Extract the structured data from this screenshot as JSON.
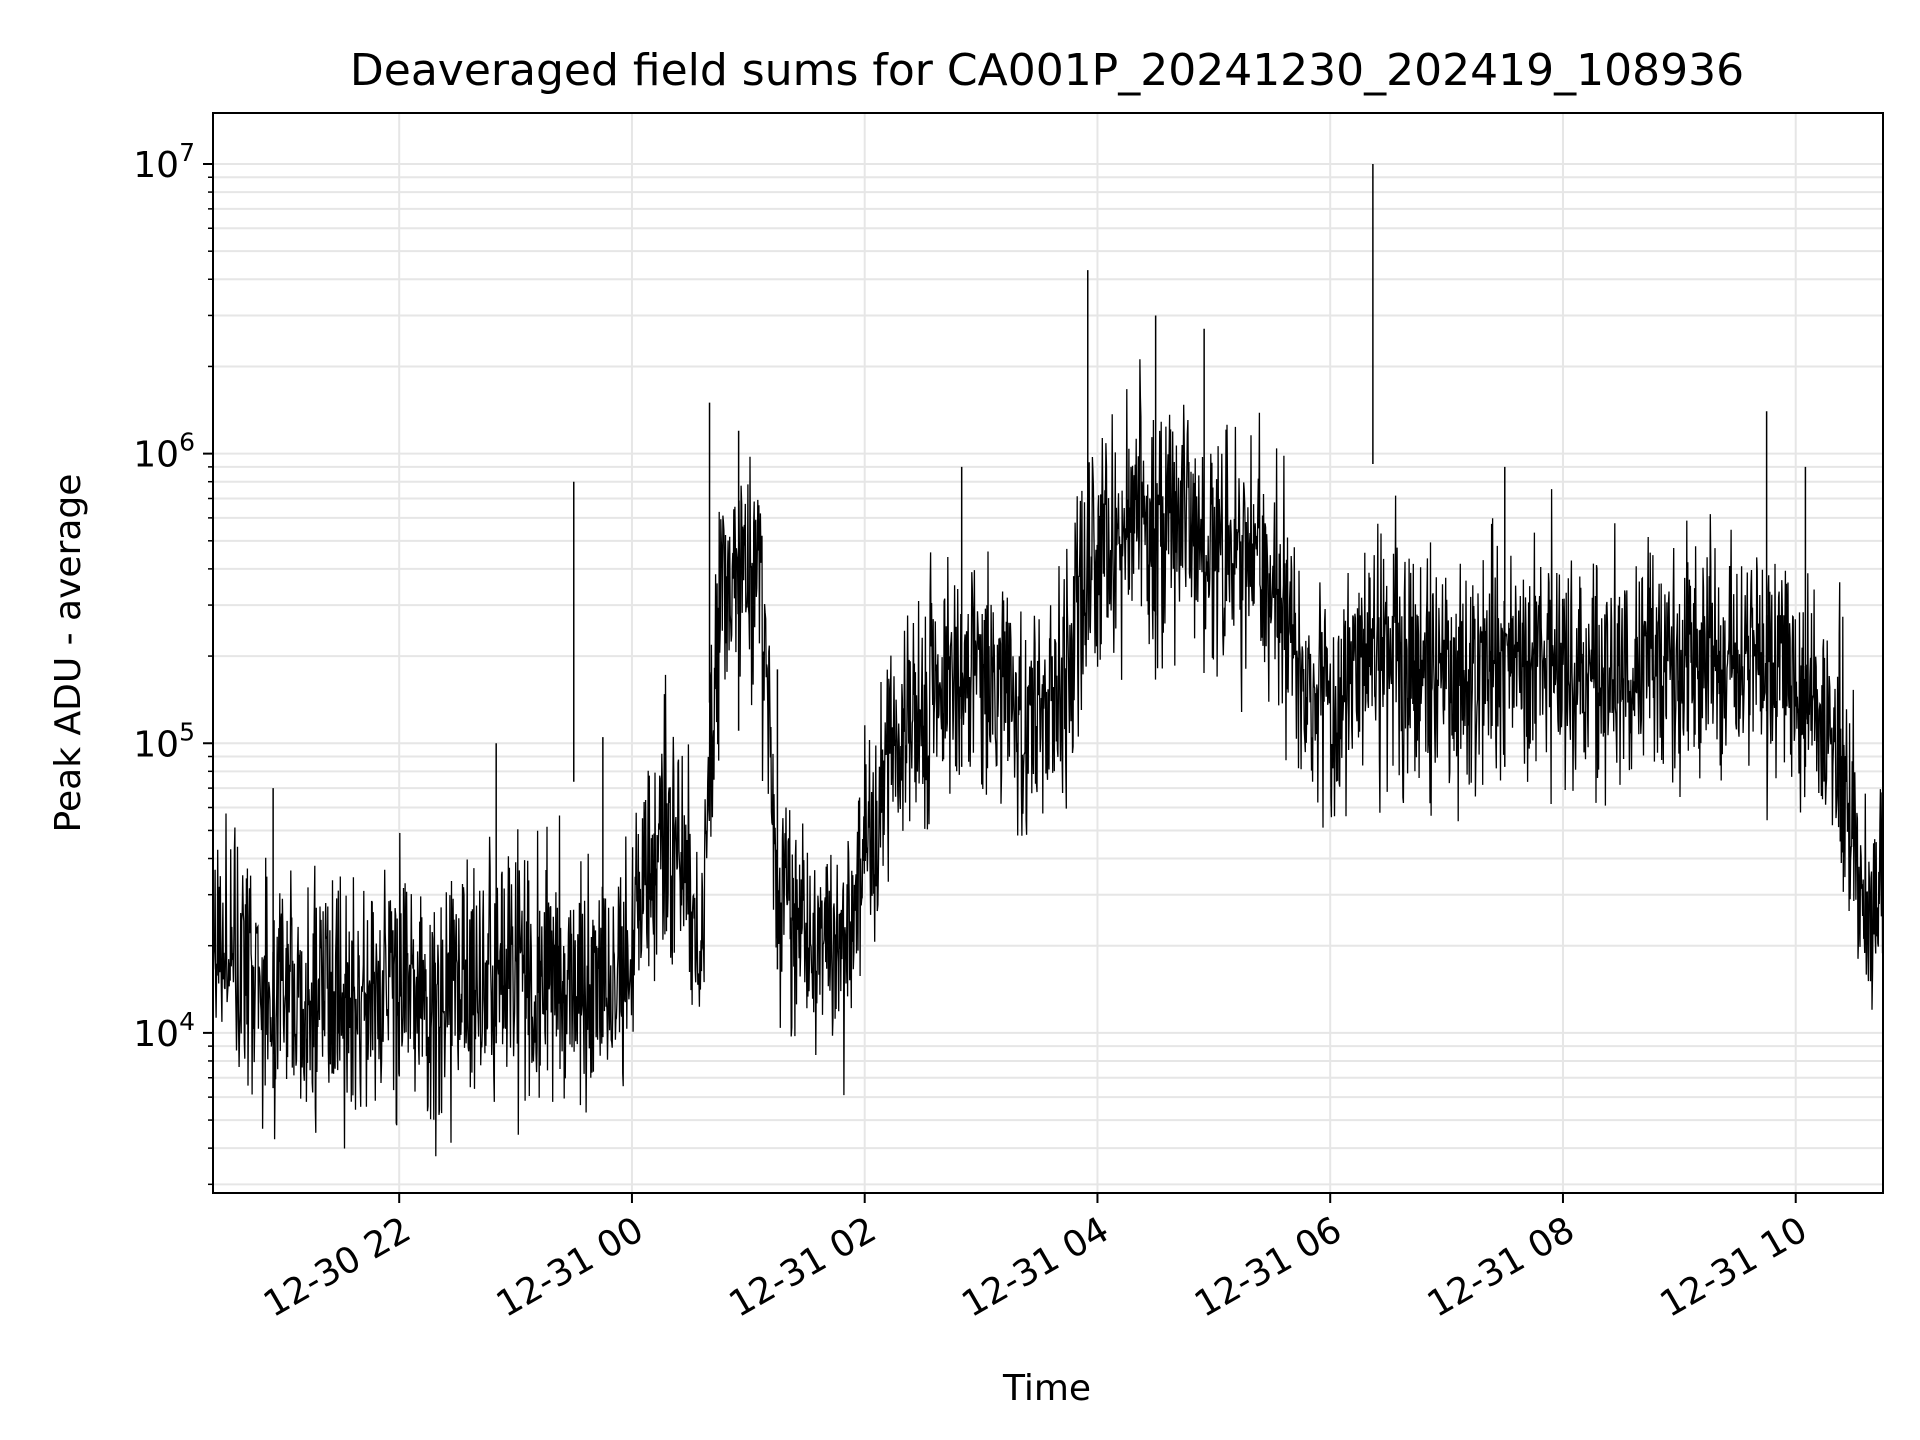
{
  "chart_data": {
    "type": "line",
    "title": "Deaveraged field sums for CA001P_20241230_202419_108936",
    "xlabel": "Time",
    "ylabel": "Peak ADU - average",
    "y_scale": "log",
    "xlim": [
      "2024-12-30 20:24",
      "2024-12-31 10:45"
    ],
    "ylim": [
      2800,
      15000000
    ],
    "grid": true,
    "legend": "none",
    "line_color": "#000000",
    "grid_color": "#e6e6e6",
    "x_ticks": [
      {
        "value": "2024-12-30 22:00",
        "label": "12-30 22"
      },
      {
        "value": "2024-12-31 00:00",
        "label": "12-31 00"
      },
      {
        "value": "2024-12-31 02:00",
        "label": "12-31 02"
      },
      {
        "value": "2024-12-31 04:00",
        "label": "12-31 04"
      },
      {
        "value": "2024-12-31 06:00",
        "label": "12-31 06"
      },
      {
        "value": "2024-12-31 08:00",
        "label": "12-31 08"
      },
      {
        "value": "2024-12-31 10:00",
        "label": "12-31 10"
      }
    ],
    "y_ticks": [
      {
        "value": 10000,
        "base": "10",
        "exp": "4"
      },
      {
        "value": 100000,
        "base": "10",
        "exp": "5"
      },
      {
        "value": 1000000,
        "base": "10",
        "exp": "6"
      },
      {
        "value": 10000000,
        "base": "10",
        "exp": "7"
      }
    ],
    "series": [
      {
        "x": [
          "2024-12-30 20:24",
          "2024-12-30 20:40",
          "2024-12-30 21:00",
          "2024-12-30 21:20",
          "2024-12-30 21:40",
          "2024-12-30 22:00",
          "2024-12-30 22:20",
          "2024-12-30 22:40",
          "2024-12-30 23:00",
          "2024-12-30 23:20",
          "2024-12-30 23:40",
          "2024-12-30 23:55",
          "2024-12-31 00:05",
          "2024-12-31 00:15",
          "2024-12-31 00:25",
          "2024-12-31 00:35",
          "2024-12-31 00:45",
          "2024-12-31 00:55",
          "2024-12-31 01:05",
          "2024-12-31 01:15",
          "2024-12-31 01:30",
          "2024-12-31 01:45",
          "2024-12-31 02:00",
          "2024-12-31 02:15",
          "2024-12-31 02:30",
          "2024-12-31 02:45",
          "2024-12-31 03:00",
          "2024-12-31 03:20",
          "2024-12-31 03:40",
          "2024-12-31 03:55",
          "2024-12-31 04:10",
          "2024-12-31 04:30",
          "2024-12-31 04:50",
          "2024-12-31 05:10",
          "2024-12-31 05:30",
          "2024-12-31 05:45",
          "2024-12-31 06:00",
          "2024-12-31 06:20",
          "2024-12-31 06:40",
          "2024-12-31 07:00",
          "2024-12-31 07:20",
          "2024-12-31 07:40",
          "2024-12-31 08:00",
          "2024-12-31 08:20",
          "2024-12-31 08:40",
          "2024-12-31 09:00",
          "2024-12-31 09:20",
          "2024-12-31 09:40",
          "2024-12-31 10:00",
          "2024-12-31 10:15",
          "2024-12-31 10:25",
          "2024-12-31 10:35",
          "2024-12-31 10:45"
        ],
        "values": [
          30000,
          16000,
          15000,
          14000,
          13000,
          13000,
          14000,
          15000,
          16000,
          15000,
          14000,
          15000,
          30000,
          60000,
          40000,
          20000,
          300000,
          400000,
          500000,
          30000,
          22000,
          18000,
          40000,
          90000,
          130000,
          170000,
          200000,
          130000,
          120000,
          400000,
          500000,
          600000,
          500000,
          450000,
          400000,
          160000,
          140000,
          200000,
          180000,
          170000,
          180000,
          190000,
          200000,
          180000,
          170000,
          180000,
          190000,
          200000,
          160000,
          150000,
          80000,
          30000,
          28000
        ]
      }
    ],
    "spikes": [
      {
        "x": "2024-12-30 20:55",
        "value": 70000
      },
      {
        "x": "2024-12-30 22:50",
        "value": 100000
      },
      {
        "x": "2024-12-30 23:30",
        "value": 800000
      },
      {
        "x": "2024-12-30 23:45",
        "value": 105000
      },
      {
        "x": "2024-12-31 00:40",
        "value": 1500000
      },
      {
        "x": "2024-12-31 00:55",
        "value": 1200000
      },
      {
        "x": "2024-12-31 01:15",
        "value": 180000
      },
      {
        "x": "2024-12-31 02:50",
        "value": 900000
      },
      {
        "x": "2024-12-31 03:55",
        "value": 4300000
      },
      {
        "x": "2024-12-31 04:30",
        "value": 3000000
      },
      {
        "x": "2024-12-31 04:55",
        "value": 2700000
      },
      {
        "x": "2024-12-31 06:22",
        "value": 10000000
      },
      {
        "x": "2024-12-31 07:30",
        "value": 900000
      },
      {
        "x": "2024-12-31 09:45",
        "value": 1400000
      },
      {
        "x": "2024-12-31 10:05",
        "value": 900000
      }
    ]
  }
}
